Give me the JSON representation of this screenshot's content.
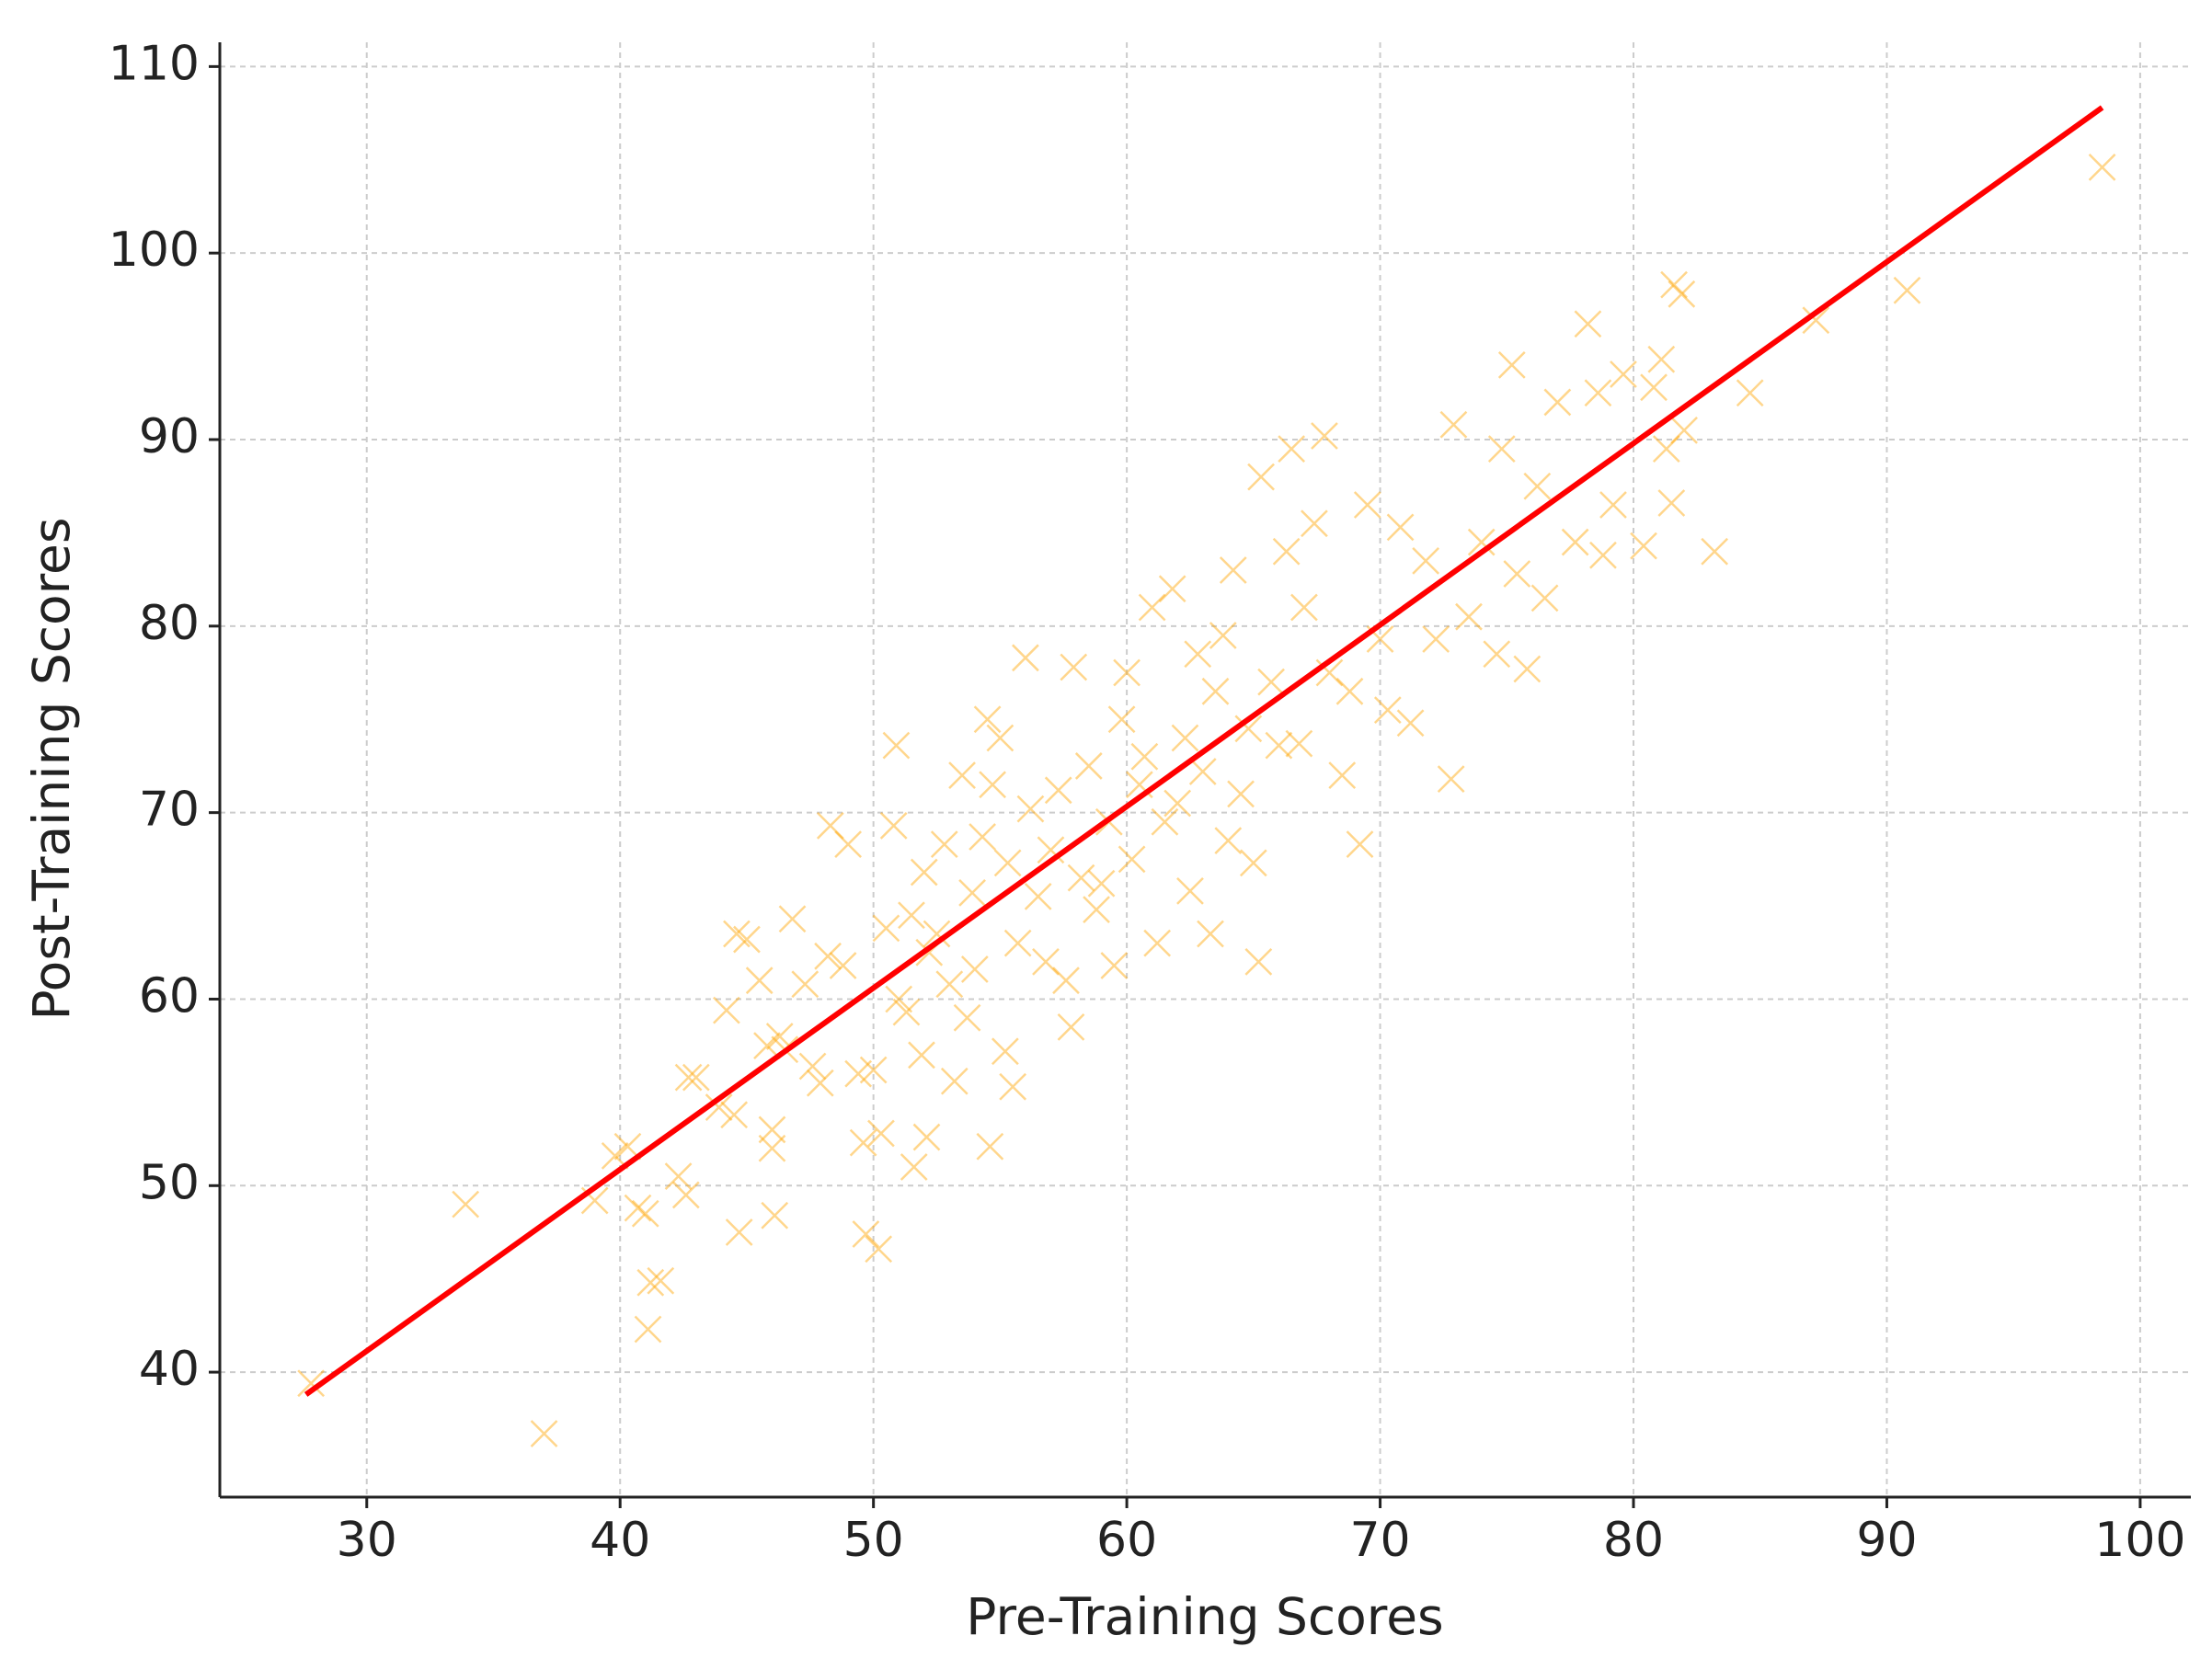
{
  "chart_data": {
    "type": "scatter",
    "xlabel": "Pre-Training Scores",
    "ylabel": "Post-Training Scores",
    "xlim": [
      24.2,
      102.0
    ],
    "ylim": [
      33.3,
      111.3
    ],
    "xticks": [
      30,
      40,
      50,
      60,
      70,
      80,
      90,
      100
    ],
    "yticks": [
      40,
      50,
      60,
      70,
      80,
      90,
      100,
      110
    ],
    "grid": true,
    "series": [
      {
        "type": "scatter",
        "color": "#ffa500",
        "x": [
          27.8,
          33.9,
          37,
          39,
          39.8,
          40.3,
          40.7,
          41,
          41.1,
          41.2,
          41.6,
          42.3,
          42.6,
          42.7,
          43,
          43.9,
          44.2,
          44.5,
          44.6,
          44.7,
          45,
          45.5,
          45.8,
          46,
          46,
          46.1,
          46.3,
          46.5,
          46.8,
          47.3,
          47.6,
          47.9,
          48.2,
          48.3,
          48.8,
          49,
          49.4,
          49.6,
          49.7,
          50,
          50.2,
          50.3,
          50.5,
          50.8,
          50.9,
          51,
          51.3,
          51.5,
          51.6,
          51.9,
          52,
          52.1,
          52.2,
          52.5,
          52.8,
          53,
          53.2,
          53.5,
          53.7,
          53.9,
          54,
          54.3,
          54.5,
          54.6,
          54.7,
          55,
          55.2,
          55.3,
          55.5,
          55.7,
          56,
          56.2,
          56.5,
          56.8,
          57,
          57.3,
          57.6,
          57.8,
          57.9,
          58.2,
          58.5,
          58.8,
          59,
          59.3,
          59.5,
          59.8,
          60,
          60.2,
          60.5,
          60.7,
          61,
          61.2,
          61.5,
          61.8,
          62,
          62.3,
          62.5,
          62.8,
          63,
          63.3,
          63.5,
          63.8,
          64,
          64.2,
          64.5,
          64.8,
          65,
          65.2,
          65.3,
          65.7,
          66,
          66.3,
          66.5,
          66.8,
          67,
          67.4,
          67.8,
          68,
          68.5,
          68.8,
          69.2,
          69.5,
          70,
          70.3,
          70.8,
          71.2,
          71.8,
          72.2,
          72.8,
          72.9,
          73.5,
          74,
          74.6,
          74.8,
          75.2,
          75.4,
          75.8,
          76.2,
          76.5,
          77,
          77.7,
          78.2,
          78.6,
          78.8,
          79.2,
          79.6,
          80.4,
          80.8,
          81.1,
          81.3,
          81.5,
          81.6,
          81.9,
          82,
          83.2,
          84.6,
          87.2,
          90.8,
          98.5
        ],
        "values": [
          39.4,
          49,
          36.7,
          49.2,
          51.6,
          52.1,
          48.8,
          48.5,
          42.3,
          44.8,
          44.9,
          50.5,
          49.5,
          55.8,
          55.8,
          54.2,
          59.4,
          53.8,
          63.5,
          47.5,
          63.2,
          61,
          57.5,
          52,
          53,
          48.4,
          58,
          57.3,
          64.3,
          60.8,
          56.4,
          55.5,
          62.3,
          69.3,
          61.8,
          68.3,
          56,
          52.3,
          47.4,
          56.2,
          46.6,
          52.8,
          63.8,
          69.3,
          73.6,
          60,
          59.3,
          64.5,
          51,
          57,
          66.8,
          52.6,
          62.5,
          63.5,
          68.3,
          60.8,
          55.6,
          72,
          59,
          65.7,
          61.6,
          68.7,
          75,
          52.1,
          71.5,
          74,
          57.2,
          67.3,
          55.3,
          63,
          78.3,
          70.2,
          65.5,
          62,
          68,
          71.2,
          61,
          58.5,
          77.8,
          66.5,
          72.5,
          64.8,
          66.2,
          69.5,
          61.8,
          75,
          77.5,
          67.5,
          71.5,
          73,
          81,
          63,
          69.5,
          82,
          70.5,
          74,
          65.8,
          78.5,
          72.2,
          63.5,
          76.5,
          79.5,
          68.5,
          83,
          71,
          74.5,
          67.3,
          62,
          88,
          77,
          73.6,
          84,
          89.5,
          73.7,
          81,
          85.5,
          90.2,
          77.5,
          72,
          76.5,
          68.3,
          86.5,
          79.3,
          75.5,
          85.3,
          74.8,
          83.5,
          79.3,
          71.8,
          90.8,
          80.5,
          84.5,
          78.5,
          89.5,
          94,
          82.8,
          77.7,
          87.5,
          81.5,
          92,
          84.5,
          96.2,
          92.5,
          83.8,
          86.5,
          93.5,
          84.3,
          92.8,
          94.3,
          89.5,
          86.6,
          98.3,
          97.8,
          90.5,
          84,
          92.5,
          96.4,
          98,
          104.6
        ]
      },
      {
        "type": "line",
        "color": "#ff0000",
        "x": [
          27.6,
          98.5
        ],
        "values": [
          38.8,
          107.8
        ]
      }
    ]
  }
}
